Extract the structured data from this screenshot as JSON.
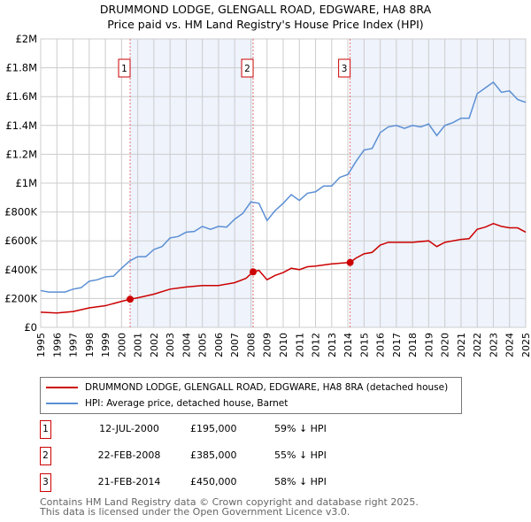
{
  "chart_data": {
    "type": "line",
    "title": "DRUMMOND LODGE, GLENGALL ROAD, EDGWARE, HA8 8RA",
    "subtitle": "Price paid vs. HM Land Registry's House Price Index (HPI)",
    "xlim": [
      1995,
      2025
    ],
    "ylim": [
      0,
      2000000
    ],
    "x_ticks": [
      "1995",
      "1996",
      "1997",
      "1998",
      "1999",
      "2000",
      "2001",
      "2002",
      "2003",
      "2004",
      "2005",
      "2006",
      "2007",
      "2008",
      "2009",
      "2010",
      "2011",
      "2012",
      "2013",
      "2014",
      "2015",
      "2016",
      "2017",
      "2018",
      "2019",
      "2020",
      "2021",
      "2022",
      "2023",
      "2024",
      "2025"
    ],
    "y_ticks": [
      {
        "v": 0,
        "label": "£0"
      },
      {
        "v": 200000,
        "label": "£200K"
      },
      {
        "v": 400000,
        "label": "£400K"
      },
      {
        "v": 600000,
        "label": "£600K"
      },
      {
        "v": 800000,
        "label": "£800K"
      },
      {
        "v": 1000000,
        "label": "£1M"
      },
      {
        "v": 1200000,
        "label": "£1.2M"
      },
      {
        "v": 1400000,
        "label": "£1.4M"
      },
      {
        "v": 1600000,
        "label": "£1.6M"
      },
      {
        "v": 1800000,
        "label": "£1.8M"
      },
      {
        "v": 2000000,
        "label": "£2M"
      }
    ],
    "grid": true,
    "shaded_ranges": [
      [
        2000.53,
        2008.14
      ],
      [
        2014.14,
        2025
      ]
    ],
    "series": [
      {
        "name": "DRUMMOND LODGE, GLENGALL ROAD, EDGWARE, HA8 8RA (detached house)",
        "color": "#cc0000",
        "x": [
          1995,
          1996,
          1997,
          1998,
          1999,
          2000,
          2000.53,
          2001,
          2002,
          2003,
          2004,
          2005,
          2006,
          2007,
          2007.7,
          2008.14,
          2008.5,
          2009,
          2009.5,
          2010,
          2010.5,
          2011,
          2011.5,
          2012,
          2013,
          2014.14,
          2014.5,
          2015,
          2015.5,
          2016,
          2016.5,
          2017,
          2018,
          2019,
          2019.5,
          2020,
          2020.5,
          2021,
          2021.5,
          2022,
          2022.5,
          2023,
          2023.5,
          2024,
          2024.5,
          2025
        ],
        "values": [
          105000,
          100000,
          110000,
          135000,
          150000,
          180000,
          195000,
          205000,
          230000,
          265000,
          280000,
          290000,
          290000,
          310000,
          340000,
          385000,
          395000,
          330000,
          360000,
          380000,
          410000,
          400000,
          420000,
          425000,
          440000,
          450000,
          480000,
          510000,
          520000,
          570000,
          590000,
          590000,
          590000,
          600000,
          560000,
          590000,
          600000,
          610000,
          615000,
          680000,
          695000,
          720000,
          700000,
          690000,
          690000,
          660000
        ]
      },
      {
        "name": "HPI: Average price, detached house, Barnet",
        "color": "#5b8fd4",
        "x": [
          1995,
          1995.5,
          1996,
          1996.5,
          1997,
          1997.5,
          1998,
          1998.5,
          1999,
          1999.5,
          2000,
          2000.5,
          2001,
          2001.5,
          2002,
          2002.5,
          2003,
          2003.5,
          2004,
          2004.5,
          2005,
          2005.5,
          2006,
          2006.5,
          2007,
          2007.5,
          2008,
          2008.5,
          2009,
          2009.5,
          2010,
          2010.5,
          2011,
          2011.5,
          2012,
          2012.5,
          2013,
          2013.5,
          2014,
          2014.5,
          2015,
          2015.5,
          2016,
          2016.5,
          2017,
          2017.5,
          2018,
          2018.5,
          2019,
          2019.5,
          2020,
          2020.5,
          2021,
          2021.5,
          2022,
          2022.5,
          2023,
          2023.5,
          2024,
          2024.5,
          2025
        ],
        "values": [
          255000,
          245000,
          245000,
          245000,
          265000,
          275000,
          320000,
          330000,
          350000,
          355000,
          410000,
          460000,
          490000,
          490000,
          540000,
          560000,
          620000,
          630000,
          660000,
          665000,
          700000,
          680000,
          700000,
          695000,
          750000,
          790000,
          870000,
          860000,
          740000,
          810000,
          860000,
          920000,
          880000,
          930000,
          940000,
          980000,
          980000,
          1040000,
          1060000,
          1150000,
          1230000,
          1240000,
          1350000,
          1390000,
          1400000,
          1380000,
          1400000,
          1390000,
          1410000,
          1330000,
          1400000,
          1420000,
          1450000,
          1450000,
          1620000,
          1660000,
          1700000,
          1630000,
          1640000,
          1580000,
          1560000
        ]
      }
    ],
    "sales": [
      {
        "label": "1",
        "x": 2000.53,
        "value": 195000,
        "date": "12-JUL-2000",
        "price": "£195,000",
        "hpi": "59% ↓ HPI"
      },
      {
        "label": "2",
        "x": 2008.14,
        "value": 385000,
        "date": "22-FEB-2008",
        "price": "£385,000",
        "hpi": "55% ↓ HPI"
      },
      {
        "label": "3",
        "x": 2014.14,
        "value": 450000,
        "date": "21-FEB-2014",
        "price": "£450,000",
        "hpi": "58% ↓ HPI"
      }
    ]
  },
  "footer": {
    "line1": "Contains HM Land Registry data © Crown copyright and database right 2025.",
    "line2": "This data is licensed under the Open Government Licence v3.0."
  }
}
